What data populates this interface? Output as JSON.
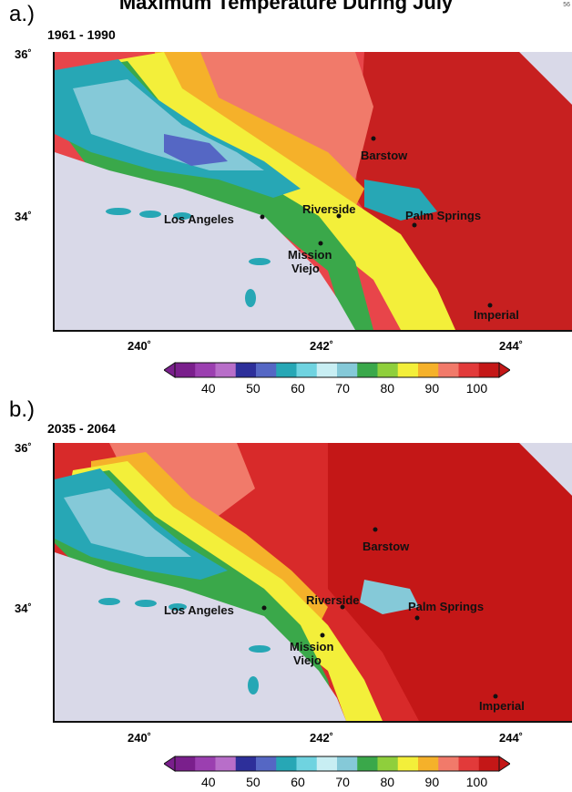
{
  "title": "Maximum Temperature During July",
  "corner_mark": "56",
  "colorbar": {
    "colors": [
      "#7a1f8c",
      "#9b3fb0",
      "#b86ec9",
      "#2d2f9a",
      "#5567c4",
      "#27a7b5",
      "#6fd3e0",
      "#c8eef3",
      "#85c9d8",
      "#3aa84a",
      "#8fcf3c",
      "#f3ef3a",
      "#f5b12a",
      "#f17a6a",
      "#e23a3a",
      "#c41717"
    ],
    "tick_labels": [
      "40",
      "50",
      "60",
      "70",
      "80",
      "90",
      "100"
    ],
    "tick_values": [
      40,
      50,
      60,
      70,
      80,
      90,
      100
    ],
    "min": 32.5,
    "max": 105
  },
  "panels": [
    {
      "letter": "a.)",
      "period": "1961 - 1990",
      "lat_labels": [
        "36˚",
        "34˚"
      ],
      "lon_labels": [
        "240˚",
        "242˚",
        "244˚"
      ],
      "cities": [
        {
          "name": "Barstow"
        },
        {
          "name": "Riverside"
        },
        {
          "name": "Palm Springs"
        },
        {
          "name": "Los Angeles"
        },
        {
          "name": "Mission"
        },
        {
          "name": "Viejo"
        },
        {
          "name": "Imperial"
        }
      ]
    },
    {
      "letter": "b.)",
      "period": "2035 - 2064",
      "lat_labels": [
        "36˚",
        "34˚"
      ],
      "lon_labels": [
        "240˚",
        "242˚",
        "244˚"
      ],
      "cities": [
        {
          "name": "Barstow"
        },
        {
          "name": "Riverside"
        },
        {
          "name": "Palm Springs"
        },
        {
          "name": "Los Angeles"
        },
        {
          "name": "Mission"
        },
        {
          "name": "Viejo"
        },
        {
          "name": "Imperial"
        }
      ]
    }
  ]
}
